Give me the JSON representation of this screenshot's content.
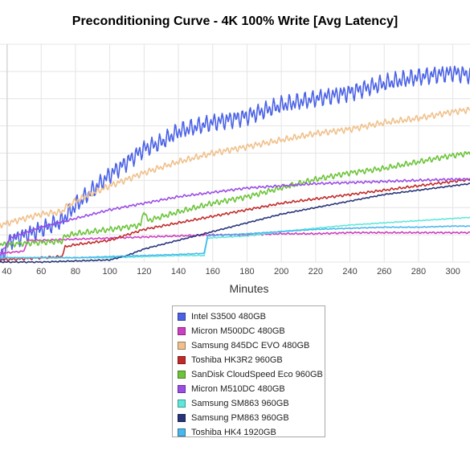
{
  "chart_data": {
    "type": "line",
    "title": "Preconditioning Curve - 4K 100% Write [Avg Latency]",
    "xlabel": "Minutes",
    "ylabel": "",
    "x_ticks": [
      40,
      60,
      80,
      100,
      120,
      140,
      160,
      180,
      200,
      220,
      240,
      260,
      280,
      300
    ],
    "xlim": [
      36,
      310
    ],
    "ylim": [
      0,
      100
    ],
    "grid": true,
    "legend_position": "bottom-center",
    "series": [
      {
        "name": "Intel S3500 480GB",
        "color": "#4b62e6",
        "points": [
          [
            36,
            1
          ],
          [
            42,
            10
          ],
          [
            60,
            15
          ],
          [
            72,
            19
          ],
          [
            80,
            26
          ],
          [
            90,
            33
          ],
          [
            100,
            40
          ],
          [
            110,
            46
          ],
          [
            120,
            52
          ],
          [
            130,
            55
          ],
          [
            140,
            60
          ],
          [
            160,
            64
          ],
          [
            180,
            67
          ],
          [
            200,
            72
          ],
          [
            220,
            75
          ],
          [
            240,
            78
          ],
          [
            260,
            82
          ],
          [
            280,
            85
          ],
          [
            300,
            87
          ],
          [
            310,
            86
          ]
        ],
        "noise": 4.5
      },
      {
        "name": "Micron M500DC 480GB",
        "color": "#cc3fc0",
        "points": [
          [
            36,
            4
          ],
          [
            50,
            5
          ],
          [
            52,
            10
          ],
          [
            60,
            10
          ],
          [
            80,
            10.5
          ],
          [
            100,
            11
          ],
          [
            120,
            11.5
          ],
          [
            140,
            12
          ],
          [
            160,
            12.5
          ],
          [
            180,
            12.5
          ],
          [
            200,
            13
          ],
          [
            220,
            13
          ],
          [
            240,
            13.5
          ],
          [
            260,
            13.5
          ],
          [
            280,
            13.5
          ],
          [
            300,
            13.5
          ],
          [
            310,
            13.5
          ]
        ],
        "noise": 0.4
      },
      {
        "name": "Samsung 845DC EVO 480GB",
        "color": "#f0c18c",
        "points": [
          [
            36,
            17
          ],
          [
            50,
            20
          ],
          [
            60,
            22
          ],
          [
            72,
            23
          ],
          [
            74,
            25
          ],
          [
            80,
            28
          ],
          [
            100,
            35
          ],
          [
            120,
            41
          ],
          [
            140,
            46
          ],
          [
            160,
            50
          ],
          [
            180,
            53
          ],
          [
            200,
            56
          ],
          [
            220,
            59
          ],
          [
            240,
            61
          ],
          [
            260,
            64
          ],
          [
            280,
            66
          ],
          [
            300,
            69
          ],
          [
            310,
            70
          ]
        ],
        "noise": 1.6
      },
      {
        "name": "Toshiba HK3R2 960GB",
        "color": "#c22a2a",
        "points": [
          [
            36,
            1
          ],
          [
            50,
            1.5
          ],
          [
            60,
            2
          ],
          [
            72,
            2.5
          ],
          [
            74,
            7
          ],
          [
            80,
            8
          ],
          [
            100,
            10
          ],
          [
            120,
            15
          ],
          [
            140,
            18
          ],
          [
            160,
            21
          ],
          [
            180,
            24
          ],
          [
            200,
            27
          ],
          [
            220,
            29
          ],
          [
            240,
            31
          ],
          [
            260,
            33
          ],
          [
            280,
            35
          ],
          [
            300,
            37
          ],
          [
            310,
            38
          ]
        ],
        "noise": 0.6
      },
      {
        "name": "SanDisk CloudSpeed Eco 960GB",
        "color": "#6cc43a",
        "points": [
          [
            36,
            8
          ],
          [
            60,
            9
          ],
          [
            72,
            9.5
          ],
          [
            74,
            12
          ],
          [
            80,
            13
          ],
          [
            100,
            15
          ],
          [
            118,
            17
          ],
          [
            120,
            24
          ],
          [
            122,
            19
          ],
          [
            140,
            23
          ],
          [
            160,
            27
          ],
          [
            180,
            30
          ],
          [
            200,
            34
          ],
          [
            220,
            38
          ],
          [
            240,
            41
          ],
          [
            260,
            43
          ],
          [
            280,
            46
          ],
          [
            300,
            49
          ],
          [
            310,
            50
          ]
        ],
        "noise": 1.4
      },
      {
        "name": "Micron M510DC 480GB",
        "color": "#9b4de6",
        "points": [
          [
            36,
            3
          ],
          [
            42,
            11
          ],
          [
            60,
            16
          ],
          [
            80,
            20
          ],
          [
            100,
            24
          ],
          [
            120,
            27
          ],
          [
            140,
            30
          ],
          [
            160,
            32
          ],
          [
            180,
            34
          ],
          [
            200,
            35
          ],
          [
            220,
            36
          ],
          [
            240,
            36.5
          ],
          [
            260,
            37
          ],
          [
            280,
            37.5
          ],
          [
            300,
            38
          ],
          [
            310,
            38
          ]
        ],
        "noise": 0.6
      },
      {
        "name": "Samsung SM863 960GB",
        "color": "#5ee8dc",
        "points": [
          [
            36,
            2
          ],
          [
            60,
            2
          ],
          [
            80,
            2
          ],
          [
            100,
            2
          ],
          [
            120,
            2.5
          ],
          [
            140,
            3
          ],
          [
            155,
            3
          ],
          [
            157,
            11
          ],
          [
            180,
            12
          ],
          [
            200,
            14
          ],
          [
            220,
            15.5
          ],
          [
            240,
            17
          ],
          [
            260,
            18
          ],
          [
            280,
            19
          ],
          [
            300,
            20
          ],
          [
            310,
            20.5
          ]
        ],
        "noise": 0.2
      },
      {
        "name": "Samsung PM863 960GB",
        "color": "#28347a",
        "points": [
          [
            36,
            0
          ],
          [
            60,
            0
          ],
          [
            80,
            0.5
          ],
          [
            100,
            1
          ],
          [
            110,
            3
          ],
          [
            120,
            6
          ],
          [
            140,
            10
          ],
          [
            160,
            14
          ],
          [
            180,
            18
          ],
          [
            200,
            22
          ],
          [
            220,
            25
          ],
          [
            240,
            28
          ],
          [
            260,
            31
          ],
          [
            280,
            33
          ],
          [
            300,
            35
          ],
          [
            310,
            36
          ]
        ],
        "noise": 0.3
      },
      {
        "name": "Toshiba HK4 1920GB",
        "color": "#4ab8ec",
        "points": [
          [
            36,
            2
          ],
          [
            60,
            2
          ],
          [
            80,
            2
          ],
          [
            100,
            2.5
          ],
          [
            120,
            3
          ],
          [
            140,
            3.5
          ],
          [
            155,
            4
          ],
          [
            157,
            12
          ],
          [
            180,
            13
          ],
          [
            200,
            14
          ],
          [
            220,
            15
          ],
          [
            240,
            15.5
          ],
          [
            260,
            16
          ],
          [
            280,
            16
          ],
          [
            300,
            16.5
          ],
          [
            310,
            16.5
          ]
        ],
        "noise": 0.2
      }
    ]
  }
}
